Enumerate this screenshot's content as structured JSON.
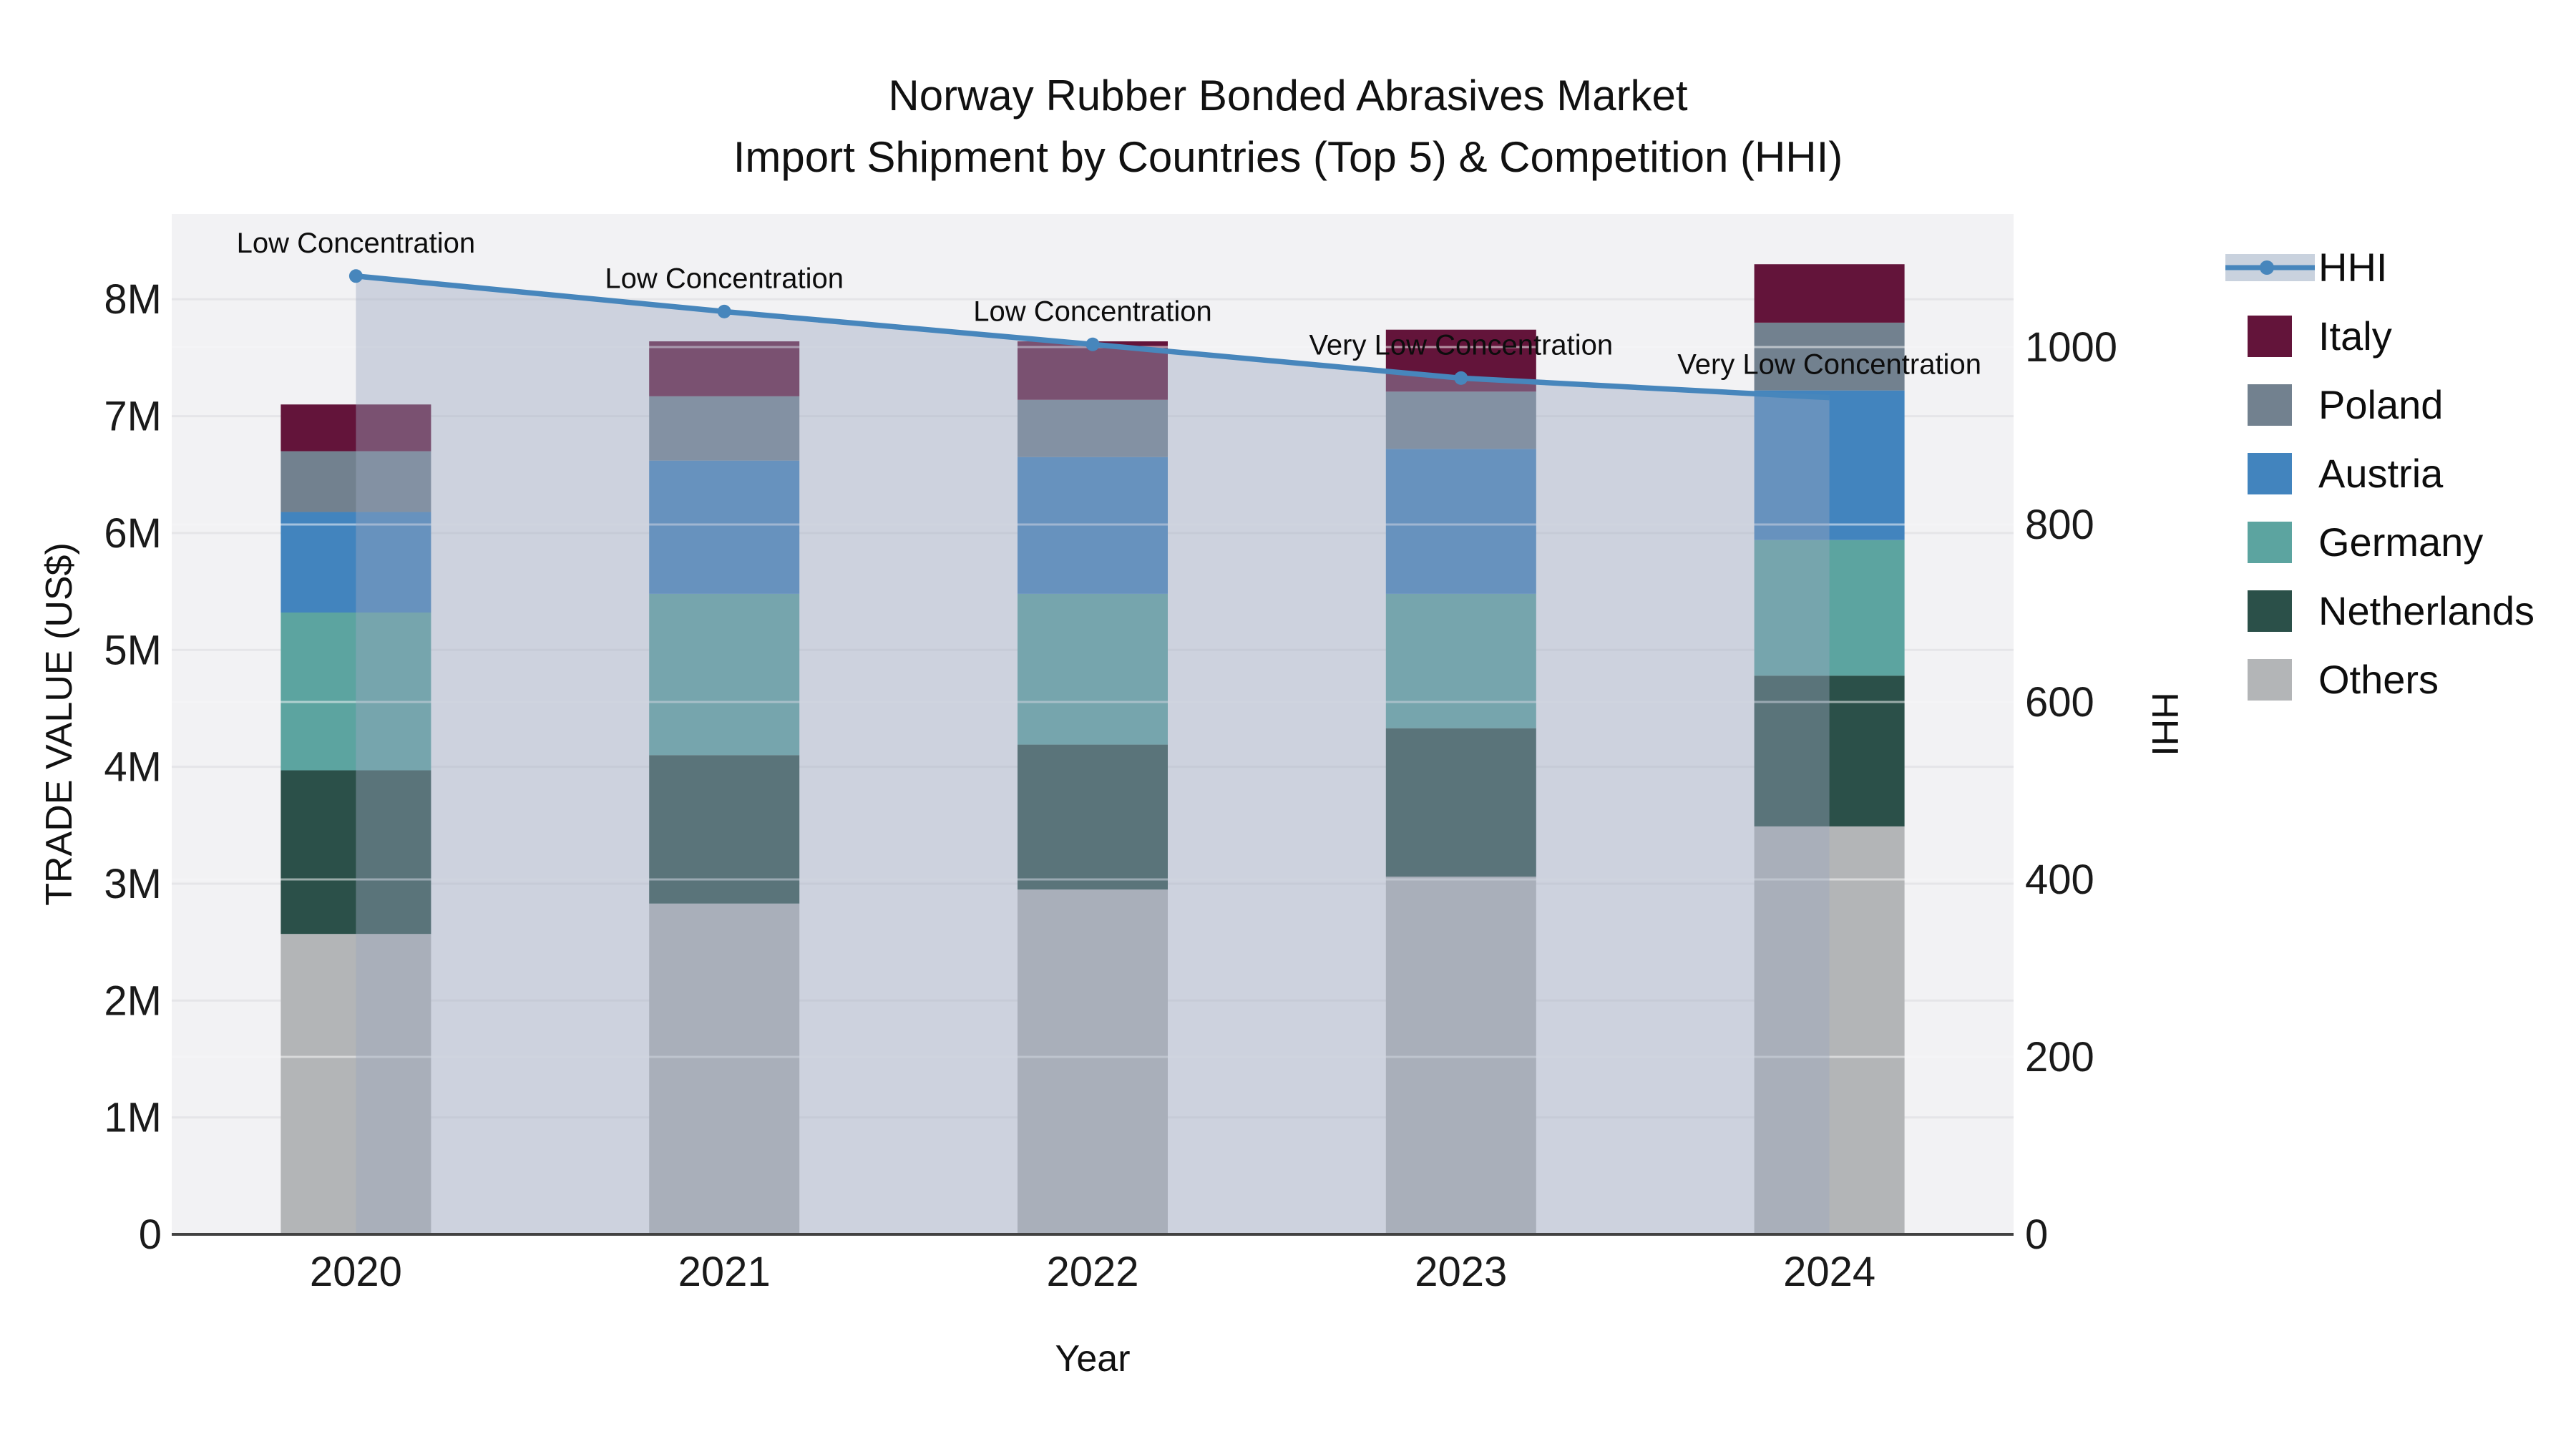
{
  "title": {
    "line1": "Norway Rubber Bonded Abrasives Market",
    "line2": "Import Shipment by Countries (Top 5) & Competition (HHI)"
  },
  "axes": {
    "left": {
      "label": "TRADE VALUE (US$)",
      "ticks": [
        "0",
        "1M",
        "2M",
        "3M",
        "4M",
        "5M",
        "6M",
        "7M",
        "8M"
      ],
      "tick_values_musd": [
        0,
        1,
        2,
        3,
        4,
        5,
        6,
        7,
        8
      ]
    },
    "right": {
      "label": "HHI",
      "ticks": [
        "0",
        "200",
        "400",
        "600",
        "800",
        "1000"
      ],
      "tick_values": [
        0,
        200,
        400,
        600,
        800,
        1000
      ]
    },
    "x": {
      "label": "Year"
    }
  },
  "legend": {
    "items": [
      {
        "name": "HHI",
        "type": "line",
        "color": "#4786BC",
        "band_color": "#C9D2DE"
      },
      {
        "name": "Italy",
        "type": "swatch",
        "color": "#63143A"
      },
      {
        "name": "Poland",
        "type": "swatch",
        "color": "#72818F"
      },
      {
        "name": "Austria",
        "type": "swatch",
        "color": "#4284BE"
      },
      {
        "name": "Germany",
        "type": "swatch",
        "color": "#5CA4A0"
      },
      {
        "name": "Netherlands",
        "type": "swatch",
        "color": "#2B5049"
      },
      {
        "name": "Others",
        "type": "swatch",
        "color": "#B3B5B7"
      }
    ]
  },
  "chart_data": {
    "type": "stacked-bar+line",
    "title": "Norway Rubber Bonded Abrasives Market — Import Shipment by Countries (Top 5) & Competition (HHI)",
    "categories": [
      "2020",
      "2021",
      "2022",
      "2023",
      "2024"
    ],
    "bar_value_unit": "USD millions (left axis, TRADE VALUE US$)",
    "series": [
      {
        "name": "Others",
        "color": "#B3B5B7",
        "values": [
          2.57,
          2.83,
          2.95,
          3.06,
          3.49
        ]
      },
      {
        "name": "Netherlands",
        "color": "#2B5049",
        "values": [
          1.4,
          1.27,
          1.24,
          1.27,
          1.29
        ]
      },
      {
        "name": "Germany",
        "color": "#5CA4A0",
        "values": [
          1.35,
          1.38,
          1.29,
          1.15,
          1.16
        ]
      },
      {
        "name": "Austria",
        "color": "#4284BE",
        "values": [
          0.86,
          1.14,
          1.17,
          1.24,
          1.28
        ]
      },
      {
        "name": "Poland",
        "color": "#72818F",
        "values": [
          0.52,
          0.55,
          0.49,
          0.49,
          0.58
        ]
      },
      {
        "name": "Italy",
        "color": "#63143A",
        "values": [
          0.4,
          0.47,
          0.5,
          0.53,
          0.5
        ]
      }
    ],
    "bar_totals_musd": [
      7.1,
      7.64,
      7.64,
      7.74,
      8.3
    ],
    "line_series": {
      "name": "HHI",
      "axis": "right",
      "color": "#4786BC",
      "area_fill": "rgba(154,168,190,0.42)",
      "values": [
        1080,
        1040,
        1003,
        965,
        943
      ]
    },
    "annotations": [
      {
        "category": "2020",
        "text": "Low Concentration"
      },
      {
        "category": "2021",
        "text": "Low Concentration"
      },
      {
        "category": "2022",
        "text": "Low Concentration"
      },
      {
        "category": "2023",
        "text": "Very Low Concentration"
      },
      {
        "category": "2024",
        "text": "Very Low Concentration"
      }
    ],
    "xlabel": "Year",
    "ylabel_left": "TRADE VALUE (US$)",
    "ylabel_right": "HHI",
    "ylim_left_musd": [
      0,
      8.73
    ],
    "ylim_right": [
      0,
      1150
    ],
    "grid": true,
    "legend_position": "right",
    "plot_bg": "#F2F2F4",
    "grid_color_left": "#E5E5E8",
    "grid_color_right": "rgba(245,245,248,0.55)",
    "spine_color": "#424242"
  }
}
